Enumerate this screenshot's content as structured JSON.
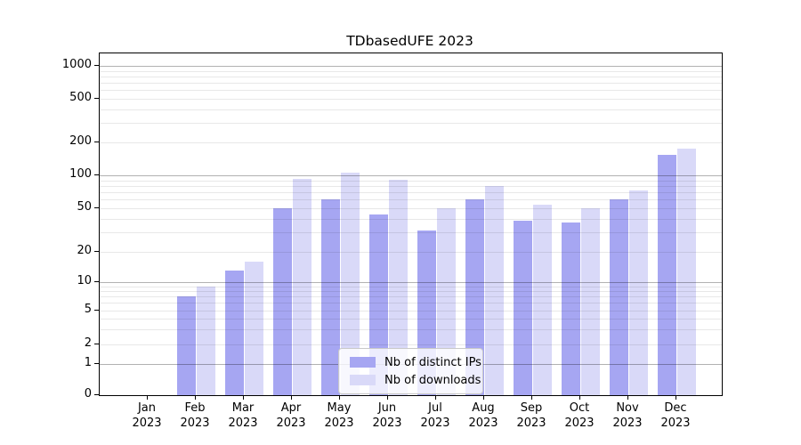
{
  "chart_data": {
    "type": "bar",
    "title": "TDbasedUFE 2023",
    "categories": [
      "Jan",
      "Feb",
      "Mar",
      "Apr",
      "May",
      "Jun",
      "Jul",
      "Aug",
      "Sep",
      "Oct",
      "Nov",
      "Dec"
    ],
    "year_label": "2023",
    "series": [
      {
        "name": "Nb of distinct IPs",
        "color": "#a6a6f2",
        "values": [
          0,
          7,
          13,
          50,
          60,
          44,
          31,
          60,
          38,
          37,
          60,
          155
        ]
      },
      {
        "name": "Nb of downloads",
        "color": "#d9d9f8",
        "values": [
          0,
          9,
          16,
          93,
          105,
          91,
          50,
          80,
          54,
          50,
          72,
          175
        ]
      }
    ],
    "yticks": [
      0,
      1,
      2,
      5,
      10,
      20,
      50,
      100,
      200,
      500,
      1000
    ],
    "ylim": [
      0,
      1300
    ],
    "yscale": "symlog",
    "grid": "on",
    "legend_position": "lower center"
  }
}
